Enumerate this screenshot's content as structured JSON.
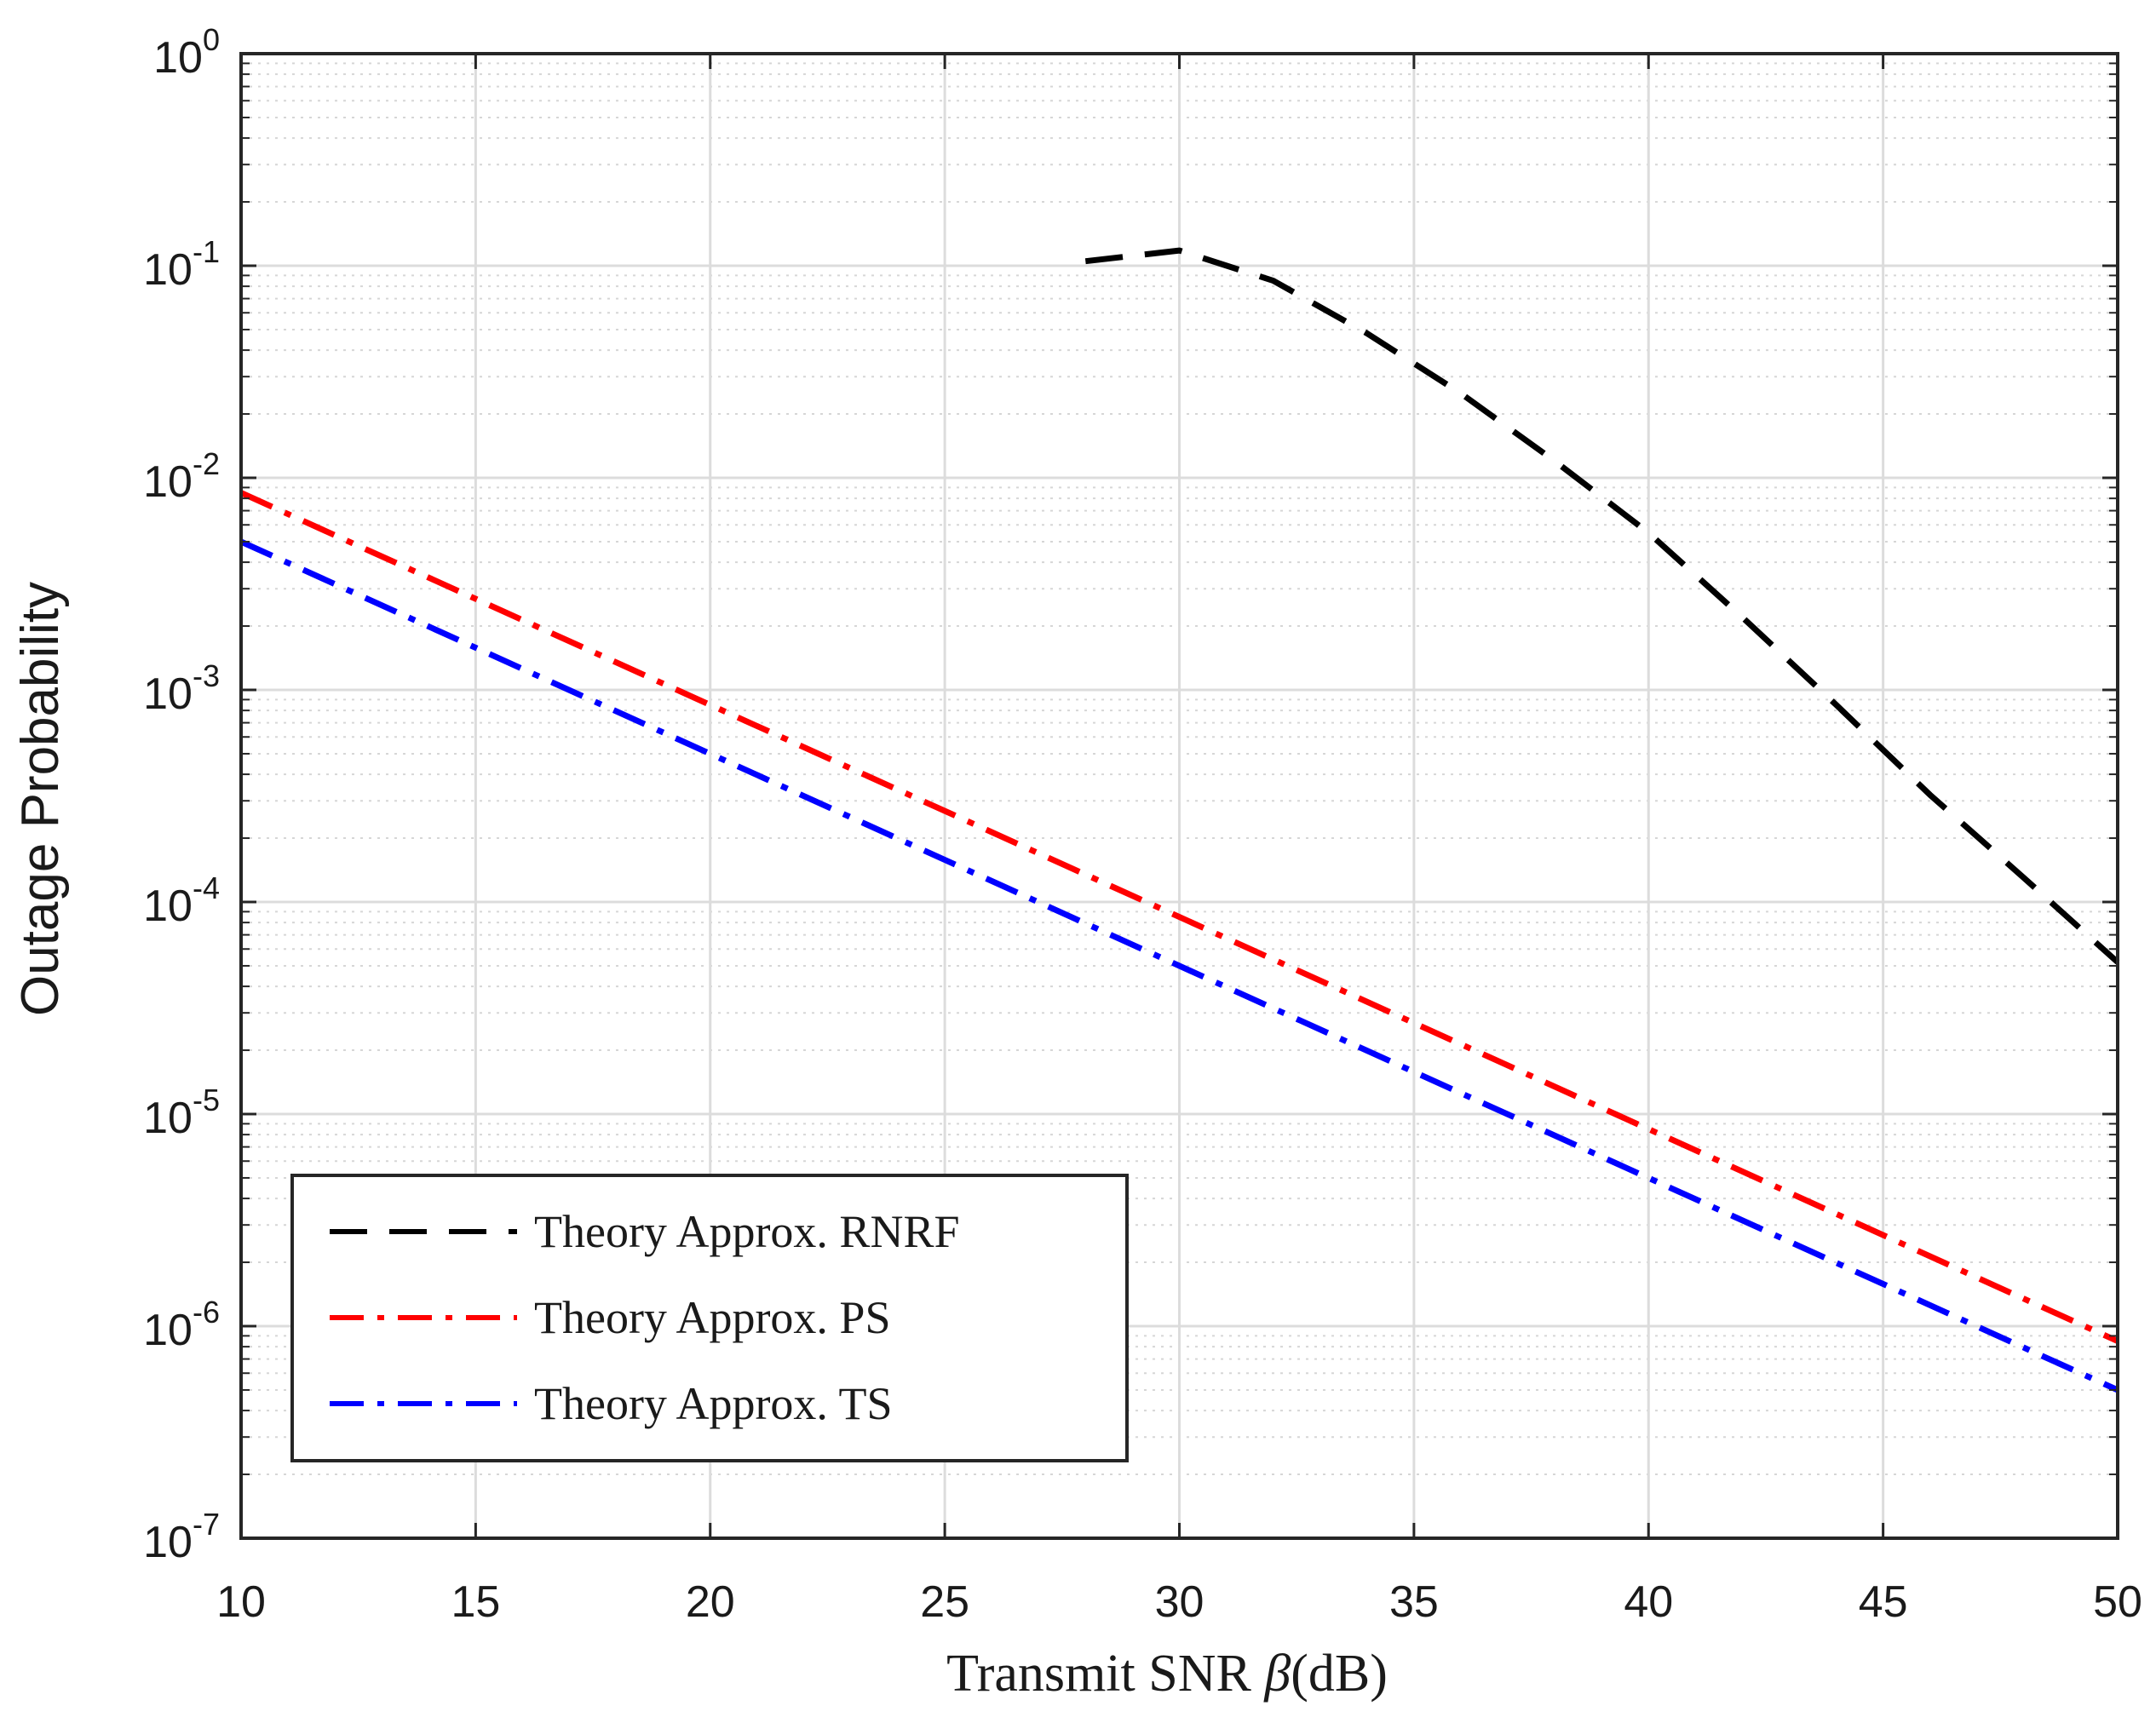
{
  "chart_data": {
    "type": "line",
    "xlabel_parts": {
      "prefix": "Transmit SNR ",
      "symbol": "β",
      "suffix": "(dB)"
    },
    "ylabel": "Outage Probability",
    "xlim": [
      10,
      50
    ],
    "ylim": [
      1e-07,
      1
    ],
    "yscale": "log",
    "grid": true,
    "minor_grid": true,
    "legend_position": "bottom-left",
    "x_ticks": [
      10,
      15,
      20,
      25,
      30,
      35,
      40,
      45,
      50
    ],
    "y_ticks": [
      {
        "value": 1,
        "base": "10",
        "exp": "0"
      },
      {
        "value": 0.1,
        "base": "10",
        "exp": "-1"
      },
      {
        "value": 0.01,
        "base": "10",
        "exp": "-2"
      },
      {
        "value": 0.001,
        "base": "10",
        "exp": "-3"
      },
      {
        "value": 0.0001,
        "base": "10",
        "exp": "-4"
      },
      {
        "value": 1e-05,
        "base": "10",
        "exp": "-5"
      },
      {
        "value": 1e-06,
        "base": "10",
        "exp": "-6"
      },
      {
        "value": 1e-07,
        "base": "10",
        "exp": "-7"
      }
    ],
    "series": [
      {
        "name": "Theory Approx. RNRF",
        "color": "#000000",
        "dash": "dash",
        "x": [
          28,
          30,
          32,
          34,
          36,
          38,
          40,
          42,
          44,
          46,
          48,
          50
        ],
        "y": [
          0.105,
          0.118,
          0.085,
          0.048,
          0.025,
          0.012,
          0.0055,
          0.0022,
          0.00085,
          0.00032,
          0.00013,
          5.2e-05
        ]
      },
      {
        "name": "Theory Approx. PS",
        "color": "#ff0000",
        "dash": "dashdot",
        "x": [
          10,
          50
        ],
        "y": [
          0.0085,
          8.5e-07
        ]
      },
      {
        "name": "Theory Approx. TS",
        "color": "#0000ff",
        "dash": "dashdot",
        "x": [
          10,
          50
        ],
        "y": [
          0.005,
          5e-07
        ]
      }
    ]
  }
}
